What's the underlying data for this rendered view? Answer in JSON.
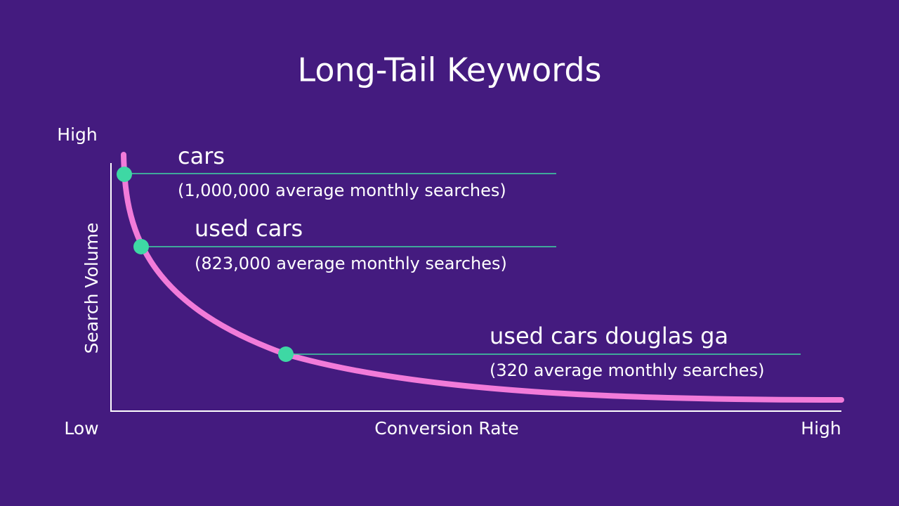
{
  "title": "Long-Tail Keywords",
  "axes": {
    "y_high": "High",
    "y_label": "Search Volume",
    "origin": "Low",
    "x_label": "Conversion Rate",
    "x_high": "High"
  },
  "keywords": [
    {
      "term": "cars",
      "searches": "(1,000,000 average monthly searches)"
    },
    {
      "term": "used cars",
      "searches": "(823,000 average monthly searches)"
    },
    {
      "term": "used cars douglas ga",
      "searches": "(320 average monthly searches)"
    }
  ]
}
